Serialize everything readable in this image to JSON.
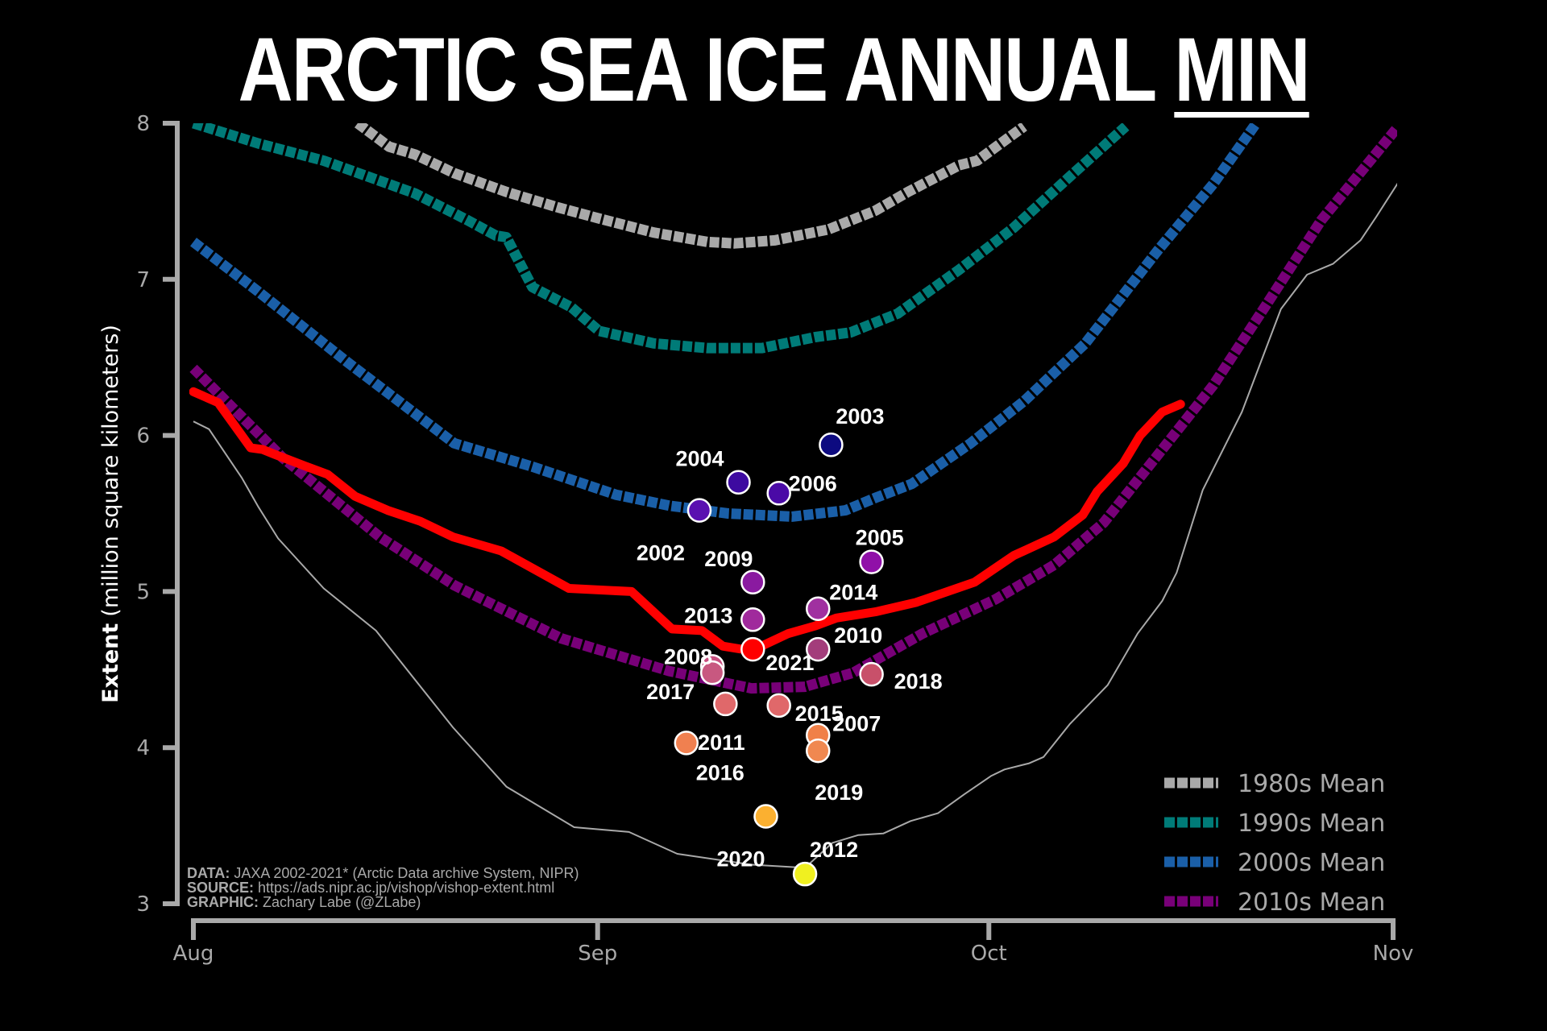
{
  "chart_data": {
    "type": "line",
    "title_main": "ARCTIC SEA ICE ANNUAL",
    "title_emph": "MIN",
    "ylabel_bold": "Extent",
    "ylabel_rest": "(million square kilometers)",
    "ylim": [
      3,
      8
    ],
    "yticks": [
      3,
      4,
      5,
      6,
      7,
      8
    ],
    "x_unit": "days since Aug 1",
    "xlim": [
      0,
      92
    ],
    "xticks": [
      {
        "day": 0,
        "label": "Aug"
      },
      {
        "day": 31,
        "label": "Sep"
      },
      {
        "day": 61,
        "label": "Oct"
      },
      {
        "day": 92,
        "label": "Nov"
      }
    ],
    "grid": false,
    "legend_position": "bottom-right",
    "series": [
      {
        "name": "1980s Mean",
        "color": "#a9a9a9",
        "style": "dashed",
        "x": [
          12.6,
          15,
          17,
          20,
          24,
          28,
          31.1,
          35.3,
          39.4,
          41.5,
          44.6,
          48.7,
          52.3,
          54.8,
          58.7,
          60.1,
          63.7
        ],
        "y": [
          8.0,
          7.85,
          7.8,
          7.68,
          7.56,
          7.46,
          7.39,
          7.3,
          7.24,
          7.23,
          7.25,
          7.32,
          7.44,
          7.56,
          7.73,
          7.76,
          7.98
        ]
      },
      {
        "name": "1990s Mean",
        "color": "#007b78",
        "style": "dashed",
        "x": [
          0,
          5,
          10,
          17,
          21,
          23.2,
          24,
          26,
          29,
          31.1,
          35.3,
          39.4,
          43.6,
          47.7,
          50.4,
          54,
          58.7,
          62.9,
          67.1,
          71.5
        ],
        "y": [
          8.0,
          7.87,
          7.76,
          7.55,
          7.38,
          7.28,
          7.27,
          6.95,
          6.82,
          6.67,
          6.59,
          6.56,
          6.56,
          6.63,
          6.66,
          6.78,
          7.06,
          7.33,
          7.65,
          7.98
        ]
      },
      {
        "name": "2000s Mean",
        "color": "#1a5fa8",
        "style": "dashed",
        "x": [
          0,
          5,
          11.8,
          20,
          26,
          32.4,
          36.5,
          41,
          45.9,
          50,
          52.3,
          55.1,
          59.6,
          63.7,
          68.4,
          74,
          78.2,
          81.5
        ],
        "y": [
          7.24,
          6.92,
          6.47,
          5.95,
          5.8,
          5.62,
          5.55,
          5.5,
          5.48,
          5.52,
          5.6,
          5.69,
          5.95,
          6.22,
          6.59,
          7.19,
          7.61,
          8.0
        ]
      },
      {
        "name": "2010s Mean",
        "color": "#780078",
        "style": "dashed",
        "x": [
          0,
          6.8,
          14.3,
          20,
          28.2,
          36.5,
          42.8,
          46.9,
          50.6,
          55.9,
          61.5,
          66,
          69.8,
          74,
          78.2,
          82.3,
          86.5,
          92.3
        ],
        "y": [
          6.43,
          5.86,
          5.35,
          5.04,
          4.7,
          4.49,
          4.38,
          4.39,
          4.48,
          4.73,
          4.95,
          5.17,
          5.44,
          5.88,
          6.32,
          6.84,
          7.38,
          7.97
        ]
      },
      {
        "name": "2021",
        "color": "#ff0000",
        "style": "solid-thick",
        "x": [
          0,
          1.9,
          4.4,
          5.3,
          6.2,
          8.7,
          10.3,
          12.4,
          14.9,
          17.4,
          19.9,
          23.6,
          28.8,
          33.6,
          36.7,
          39,
          40.6,
          42.8,
          45.6,
          47.7,
          49.3,
          52.3,
          55.4,
          59.9,
          62.9,
          66,
          68.2,
          69.3,
          71.3,
          72.6,
          74.3,
          75.7
        ],
        "y": [
          6.28,
          6.21,
          5.92,
          5.91,
          5.88,
          5.8,
          5.75,
          5.61,
          5.52,
          5.45,
          5.35,
          5.26,
          5.02,
          5.0,
          4.76,
          4.75,
          4.65,
          4.62,
          4.73,
          4.78,
          4.83,
          4.87,
          4.93,
          5.06,
          5.23,
          5.35,
          5.49,
          5.64,
          5.82,
          6.0,
          6.15,
          6.2
        ]
      },
      {
        "name": "2012",
        "color": "#a9a9a9",
        "style": "solid-thin",
        "x": [
          0,
          1.2,
          3.7,
          5,
          6.5,
          10,
          14,
          19.9,
          24,
          29.2,
          33.4,
          37.1,
          42.8,
          46.9,
          49,
          51,
          52.9,
          55,
          57.1,
          59.1,
          61.2,
          62.2,
          64.1,
          65.2,
          67.2,
          70.1,
          72.4,
          74.3,
          75.4,
          77.4,
          80.4,
          83.4,
          85.4,
          87.4,
          89.5,
          90.7,
          92.7
        ],
        "y": [
          6.09,
          6.04,
          5.73,
          5.54,
          5.34,
          5.02,
          4.75,
          4.13,
          3.75,
          3.49,
          3.46,
          3.32,
          3.25,
          3.23,
          3.39,
          3.44,
          3.45,
          3.53,
          3.58,
          3.7,
          3.82,
          3.86,
          3.9,
          3.94,
          4.15,
          4.4,
          4.73,
          4.94,
          5.12,
          5.65,
          6.15,
          6.81,
          7.03,
          7.1,
          7.25,
          7.4,
          7.66
        ]
      }
    ],
    "minima": [
      {
        "year": "2002",
        "day": 38.8,
        "value": 5.52,
        "color": "#5a10b0"
      },
      {
        "year": "2003",
        "day": 48.9,
        "value": 5.94,
        "color": "#0d0a80"
      },
      {
        "year": "2004",
        "day": 41.8,
        "value": 5.7,
        "color": "#3d0aa0"
      },
      {
        "year": "2005",
        "day": 52.0,
        "value": 5.19,
        "color": "#9010a8"
      },
      {
        "year": "2006",
        "day": 44.9,
        "value": 5.63,
        "color": "#4a0aa6"
      },
      {
        "year": "2007",
        "day": 47.9,
        "value": 4.08,
        "color": "#f08048"
      },
      {
        "year": "2008",
        "day": 39.8,
        "value": 4.52,
        "color": "#c85080"
      },
      {
        "year": "2009",
        "day": 42.9,
        "value": 5.06,
        "color": "#8a1aa0"
      },
      {
        "year": "2010",
        "day": 47.9,
        "value": 4.63,
        "color": "#c04890"
      },
      {
        "year": "2011",
        "day": 40.8,
        "value": 4.28,
        "color": "#e0686a"
      },
      {
        "year": "2012",
        "day": 46.9,
        "value": 3.19,
        "color": "#f0f020"
      },
      {
        "year": "2013",
        "day": 42.9,
        "value": 4.82,
        "color": "#a02a9c"
      },
      {
        "year": "2014",
        "day": 47.9,
        "value": 4.89,
        "color": "#a030a0"
      },
      {
        "year": "2015",
        "day": 44.9,
        "value": 4.27,
        "color": "#e0686a"
      },
      {
        "year": "2016",
        "day": 37.8,
        "value": 4.03,
        "color": "#f08050"
      },
      {
        "year": "2017",
        "day": 39.8,
        "value": 4.48,
        "color": "#c85880"
      },
      {
        "year": "2018",
        "day": 52.0,
        "value": 4.47,
        "color": "#c8506a"
      },
      {
        "year": "2019",
        "day": 47.9,
        "value": 3.98,
        "color": "#f08850"
      },
      {
        "year": "2020",
        "day": 43.9,
        "value": 3.56,
        "color": "#fbb030"
      },
      {
        "year": "2021",
        "day": 42.9,
        "value": 4.63,
        "color": "#ff0000"
      }
    ],
    "credits": [
      {
        "label": "DATA:",
        "text": "JAXA 2002-2021* (Arctic Data archive System, NIPR)"
      },
      {
        "label": "SOURCE:",
        "text": "https://ads.nipr.ac.jp/vishop/vishop-extent.html"
      },
      {
        "label": "GRAPHIC:",
        "text": "Zachary Labe (@ZLabe)"
      }
    ],
    "colors": {
      "axis": "#a9a9a9",
      "background": "#000000",
      "highlight": "#ff0000"
    }
  }
}
